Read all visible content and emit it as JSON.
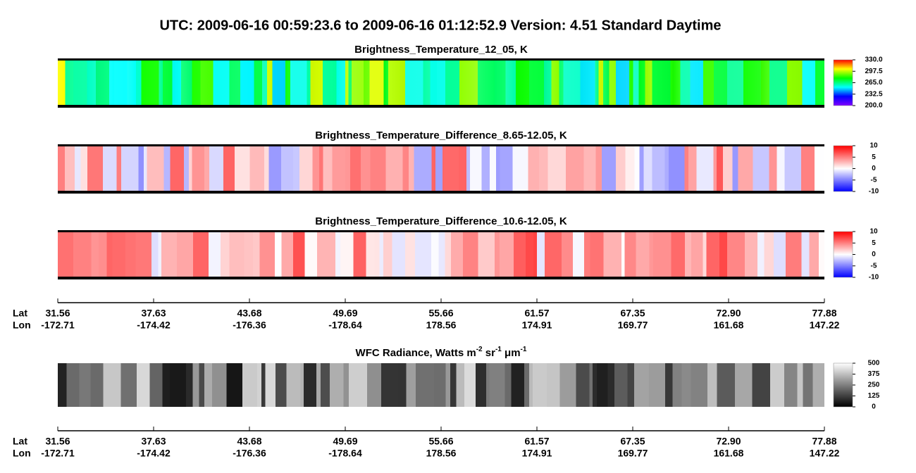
{
  "title": "UTC:  2009-06-16   00:59:23.6  to  2009-06-16   01:12:52.9    Version: 4.51  Standard Daytime",
  "panels": [
    {
      "title": "Brightness_Temperature_12_05, K",
      "lim": [
        200,
        330
      ],
      "ticks": [
        {
          "value": 330,
          "label": "330.0"
        },
        {
          "value": 297.5,
          "label": "297.5"
        },
        {
          "value": 265,
          "label": "265.0"
        },
        {
          "value": 232.5,
          "label": "232.5"
        },
        {
          "value": 200,
          "label": "200.0"
        }
      ]
    },
    {
      "title": "Brightness_Temperature_Difference_8.65-12.05, K",
      "lim": [
        -10,
        10
      ],
      "ticks": [
        10,
        5,
        0,
        -5,
        -10
      ]
    },
    {
      "title": "Brightness_Temperature_Difference_10.6-12.05, K",
      "lim": [
        -10,
        10
      ],
      "ticks": [
        10,
        5,
        0,
        -5,
        -10
      ]
    },
    {
      "title_parts": [
        "WFC Radiance, Watts m",
        "-2",
        " sr",
        "-1",
        " μm",
        "-1"
      ],
      "lim": [
        0,
        500
      ],
      "ticks": [
        500,
        375,
        250,
        125,
        0
      ]
    }
  ],
  "axis": {
    "lat_label": "Lat",
    "lon_label": "Lon",
    "lat": [
      "31.56",
      "37.63",
      "43.68",
      "49.69",
      "55.66",
      "61.57",
      "67.35",
      "72.90",
      "77.88"
    ],
    "lon": [
      "-172.71",
      "-174.42",
      "-176.36",
      "-178.64",
      "178.56",
      "174.91",
      "169.77",
      "161.68",
      "147.22"
    ]
  }
}
